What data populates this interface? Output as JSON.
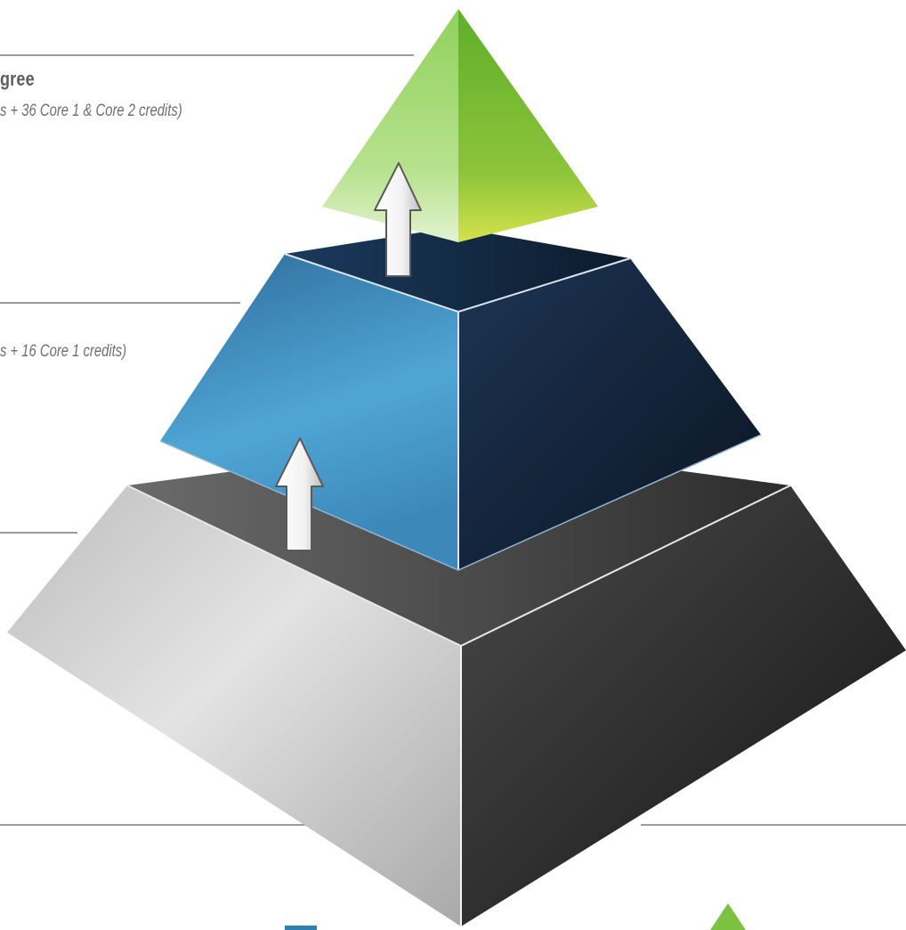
{
  "tiers": {
    "top": {
      "title": "gree",
      "credits": "s + 36 Core 1 & Core 2 credits)",
      "color": "#7cc242"
    },
    "middle": {
      "credits": "s + 16 Core 1 credits)",
      "color": "#2f7fb3"
    },
    "bottom": {
      "color": "#9a9a9a"
    }
  },
  "icons": {
    "upper_arrow": "up-arrow-icon",
    "lower_arrow": "up-arrow-icon",
    "legend_blue": "blue-square-icon",
    "legend_green": "green-triangle-icon"
  }
}
